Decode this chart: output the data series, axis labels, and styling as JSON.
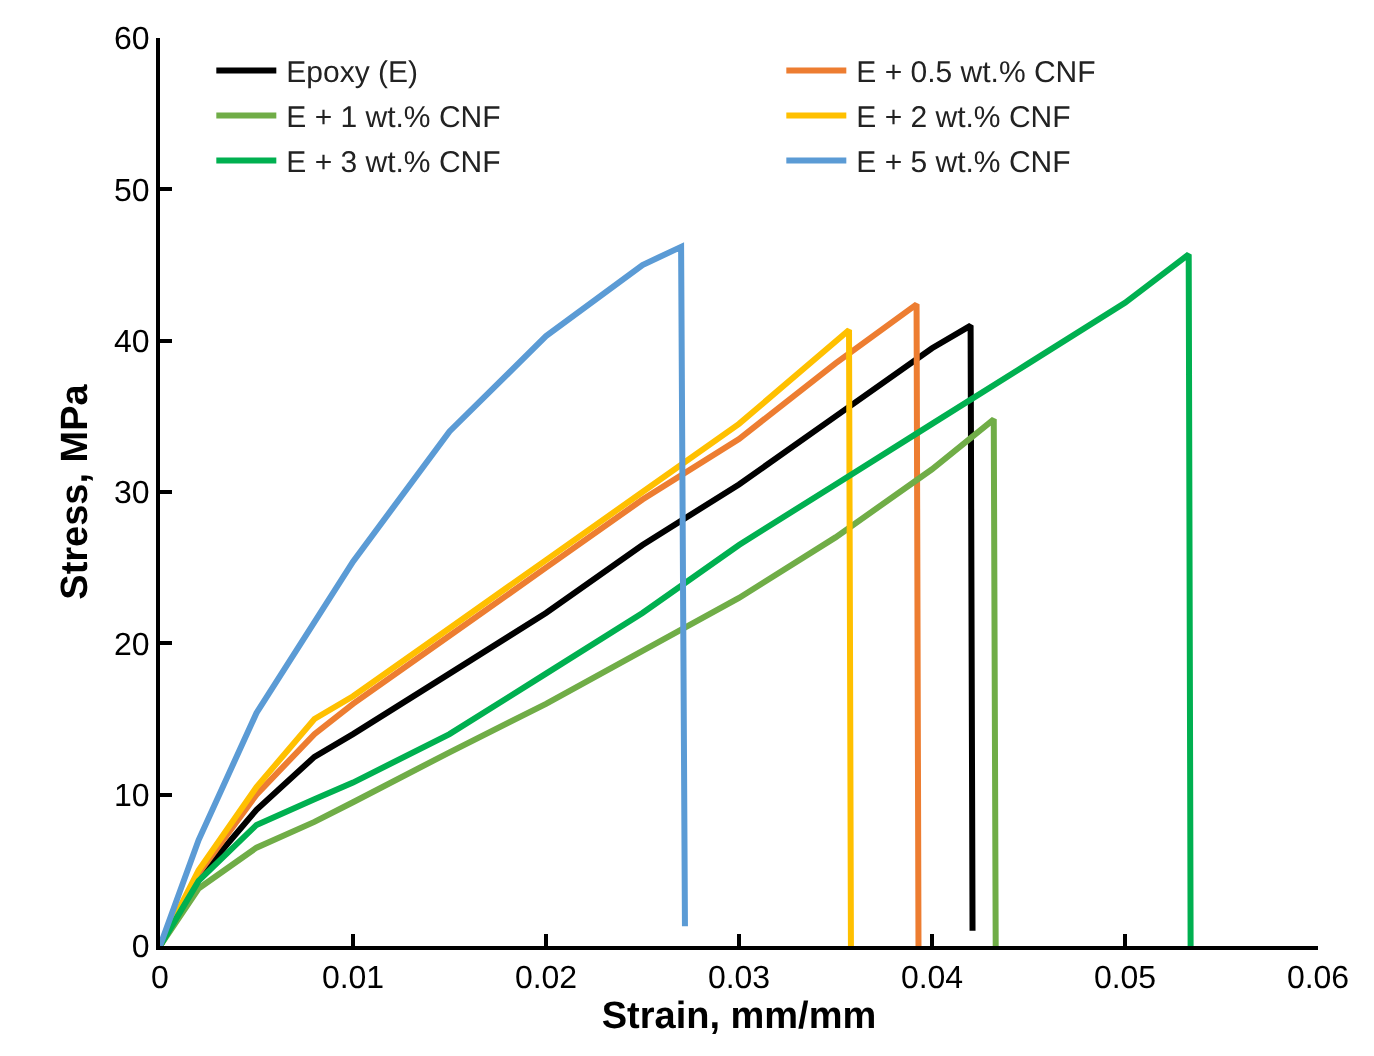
{
  "chart_data": {
    "type": "line",
    "xlabel": "Strain, mm/mm",
    "ylabel": "Stress, MPa",
    "xlim": [
      0,
      0.06
    ],
    "xticks": [
      0,
      0.01,
      0.02,
      0.03,
      0.04,
      0.05,
      0.06
    ],
    "ylim": [
      0,
      60
    ],
    "yticks": [
      0,
      10,
      20,
      30,
      40,
      50,
      60
    ],
    "legend": "top",
    "marker": "none",
    "line_style": "solid",
    "series": [
      {
        "name": "Epoxy (E)",
        "color": "#000000",
        "x": [
          0,
          0.002,
          0.005,
          0.008,
          0.01,
          0.015,
          0.02,
          0.025,
          0.03,
          0.035,
          0.04,
          0.042,
          0.0421
        ],
        "values": [
          0,
          4.5,
          9,
          12.5,
          14,
          18,
          22,
          26.5,
          30.5,
          35,
          39.5,
          41,
          1
        ]
      },
      {
        "name": "E + 0.5 wt.% CNF",
        "color": "#ed7d31",
        "x": [
          0,
          0.002,
          0.005,
          0.008,
          0.01,
          0.015,
          0.02,
          0.025,
          0.03,
          0.035,
          0.0392,
          0.0393
        ],
        "values": [
          0,
          4.8,
          10,
          14,
          16,
          20.5,
          25,
          29.5,
          33.5,
          38.5,
          42.4,
          0
        ]
      },
      {
        "name": "E + 1 wt.% CNF",
        "color": "#70ad47",
        "x": [
          0,
          0.002,
          0.005,
          0.008,
          0.01,
          0.015,
          0.02,
          0.025,
          0.03,
          0.035,
          0.04,
          0.0432,
          0.0433
        ],
        "values": [
          0,
          3.8,
          6.5,
          8.2,
          9.5,
          12.8,
          16,
          19.5,
          23,
          27,
          31.5,
          34.8,
          0
        ]
      },
      {
        "name": "E + 2 wt.% CNF",
        "color": "#ffc000",
        "x": [
          0,
          0.002,
          0.005,
          0.008,
          0.01,
          0.015,
          0.02,
          0.025,
          0.03,
          0.0357,
          0.0358
        ],
        "values": [
          0,
          5,
          10.5,
          15,
          16.5,
          21,
          25.5,
          30,
          34.5,
          40.7,
          0
        ]
      },
      {
        "name": "E + 3 wt.% CNF",
        "color": "#00b050",
        "x": [
          0,
          0.002,
          0.005,
          0.008,
          0.01,
          0.015,
          0.02,
          0.025,
          0.03,
          0.035,
          0.04,
          0.045,
          0.05,
          0.0533,
          0.0534
        ],
        "values": [
          0,
          4.3,
          8,
          9.7,
          10.8,
          14,
          18,
          22,
          26.5,
          30.5,
          34.5,
          38.5,
          42.5,
          45.7,
          0
        ]
      },
      {
        "name": "E + 5 wt.% CNF",
        "color": "#5b9bd5",
        "x": [
          0,
          0.002,
          0.005,
          0.01,
          0.015,
          0.02,
          0.025,
          0.027,
          0.0272
        ],
        "values": [
          0,
          7,
          15.4,
          25.4,
          34,
          40.3,
          45,
          46.2,
          1.3
        ]
      }
    ]
  }
}
